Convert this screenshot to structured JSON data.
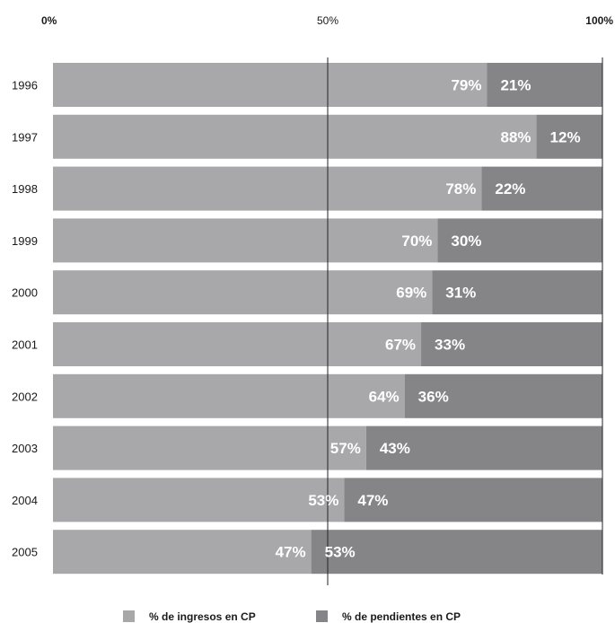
{
  "chart_data": {
    "type": "bar",
    "orientation": "horizontal",
    "stacked": true,
    "categories": [
      "1996",
      "1997",
      "1998",
      "1999",
      "2000",
      "2001",
      "2002",
      "2003",
      "2004",
      "2005"
    ],
    "series": [
      {
        "name": "% de ingresos en CP",
        "color": "#a8a8aa",
        "values": [
          79,
          88,
          78,
          70,
          69,
          67,
          64,
          57,
          53,
          47
        ],
        "labels": [
          "79%",
          "88%",
          "78%",
          "70%",
          "69%",
          "67%",
          "64%",
          "57%",
          "53%",
          "47%"
        ]
      },
      {
        "name": "% de pendientes en CP",
        "color": "#858587",
        "values": [
          21,
          12,
          22,
          30,
          31,
          33,
          36,
          43,
          47,
          53
        ],
        "labels": [
          "21%",
          "12%",
          "22%",
          "30%",
          "31%",
          "33%",
          "36%",
          "43%",
          "47%",
          "53%"
        ]
      }
    ],
    "xticks": [
      {
        "value": 0,
        "label": "0%",
        "bold": true
      },
      {
        "value": 50,
        "label": "50%",
        "bold": false
      },
      {
        "value": 100,
        "label": "100%",
        "bold": true
      }
    ],
    "xlim": [
      0,
      100
    ],
    "title": "",
    "xlabel": "",
    "ylabel": "",
    "legend_position": "bottom"
  }
}
